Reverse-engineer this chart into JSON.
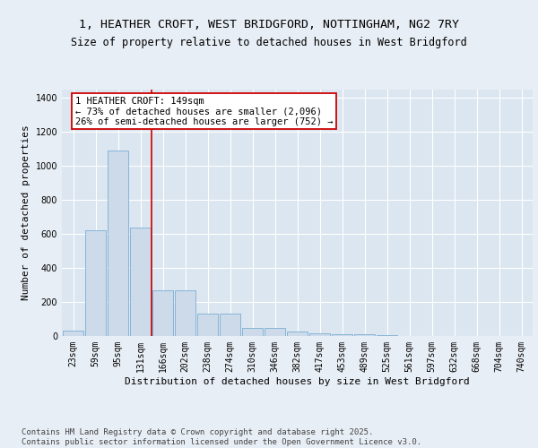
{
  "title_line1": "1, HEATHER CROFT, WEST BRIDGFORD, NOTTINGHAM, NG2 7RY",
  "title_line2": "Size of property relative to detached houses in West Bridgford",
  "xlabel": "Distribution of detached houses by size in West Bridgford",
  "ylabel": "Number of detached properties",
  "categories": [
    "23sqm",
    "59sqm",
    "95sqm",
    "131sqm",
    "166sqm",
    "202sqm",
    "238sqm",
    "274sqm",
    "310sqm",
    "346sqm",
    "382sqm",
    "417sqm",
    "453sqm",
    "489sqm",
    "525sqm",
    "561sqm",
    "597sqm",
    "632sqm",
    "668sqm",
    "704sqm",
    "740sqm"
  ],
  "values": [
    30,
    620,
    1090,
    640,
    270,
    270,
    130,
    130,
    48,
    48,
    28,
    18,
    12,
    8,
    4,
    2,
    1,
    1,
    0,
    0,
    0
  ],
  "bar_color": "#ccdaea",
  "bar_edge_color": "#7bafd4",
  "vline_x_index": 3.5,
  "vline_color": "#cc0000",
  "annotation_text": "1 HEATHER CROFT: 149sqm\n← 73% of detached houses are smaller (2,096)\n26% of semi-detached houses are larger (752) →",
  "annotation_box_edgecolor": "#cc0000",
  "ylim": [
    0,
    1450
  ],
  "yticks": [
    0,
    200,
    400,
    600,
    800,
    1000,
    1200,
    1400
  ],
  "fig_bg_color": "#e8eef5",
  "plot_bg_color": "#dce6f0",
  "footer_text": "Contains HM Land Registry data © Crown copyright and database right 2025.\nContains public sector information licensed under the Open Government Licence v3.0.",
  "title_fontsize": 9.5,
  "subtitle_fontsize": 8.5,
  "axis_label_fontsize": 8,
  "tick_fontsize": 7,
  "annotation_fontsize": 7.5,
  "footer_fontsize": 6.5
}
